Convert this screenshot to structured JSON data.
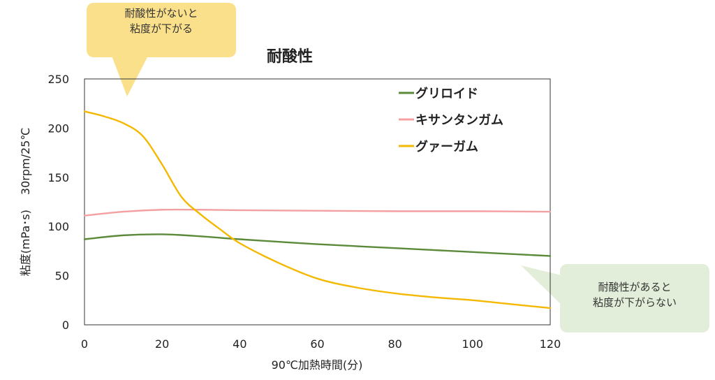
{
  "chart_data": {
    "type": "line",
    "title": "耐酸性",
    "xlabel": "90℃加熱時間(分)",
    "ylabel": "粘度(mPa･s)　 30rpm/25℃",
    "xlim": [
      0,
      120
    ],
    "ylim": [
      0,
      250
    ],
    "x_ticks": [
      0,
      20,
      40,
      60,
      80,
      100,
      120
    ],
    "y_ticks": [
      0,
      50,
      100,
      150,
      200,
      250
    ],
    "grid": false,
    "legend_position": "top-right",
    "series": [
      {
        "name": "グリロイド",
        "color": "#5a8a3a",
        "points": [
          [
            0,
            87
          ],
          [
            10,
            91
          ],
          [
            20,
            92
          ],
          [
            30,
            90
          ],
          [
            40,
            87
          ],
          [
            60,
            82
          ],
          [
            80,
            78
          ],
          [
            100,
            74
          ],
          [
            120,
            70
          ]
        ]
      },
      {
        "name": "キサンタンガム",
        "color": "#f4a0a0",
        "points": [
          [
            0,
            111
          ],
          [
            10,
            115
          ],
          [
            20,
            117
          ],
          [
            30,
            117
          ],
          [
            40,
            116.5
          ],
          [
            60,
            116
          ],
          [
            80,
            115.5
          ],
          [
            100,
            115.5
          ],
          [
            120,
            115
          ]
        ]
      },
      {
        "name": "グァーガム",
        "color": "#f5b800",
        "points": [
          [
            0,
            217
          ],
          [
            5,
            212
          ],
          [
            10,
            205
          ],
          [
            15,
            192
          ],
          [
            20,
            163
          ],
          [
            25,
            130
          ],
          [
            30,
            112
          ],
          [
            35,
            97
          ],
          [
            40,
            83
          ],
          [
            50,
            63
          ],
          [
            60,
            47
          ],
          [
            70,
            38
          ],
          [
            80,
            32
          ],
          [
            90,
            28
          ],
          [
            100,
            25
          ],
          [
            110,
            21
          ],
          [
            120,
            17
          ]
        ]
      }
    ],
    "annotations": [
      {
        "lines": [
          "耐酸性がないと",
          "粘度が下がる"
        ],
        "color": "#fbe08c"
      },
      {
        "lines": [
          "耐酸性があると",
          "粘度が下がらない"
        ],
        "color": "#e2eed9"
      }
    ]
  }
}
